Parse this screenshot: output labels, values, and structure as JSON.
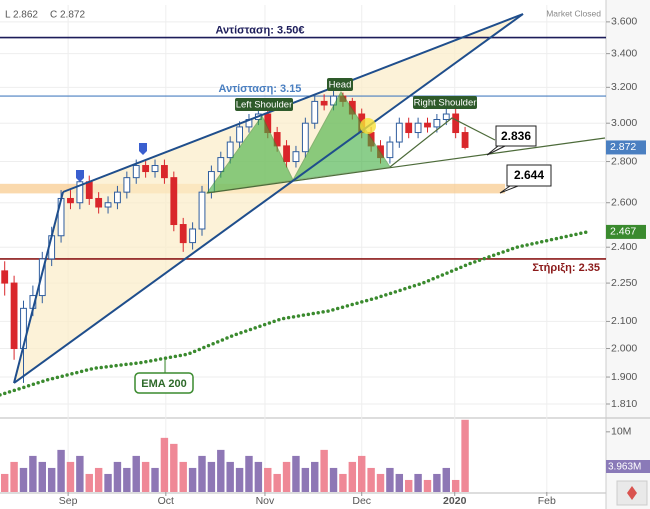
{
  "chart_data": {
    "type": "candlestick",
    "header": {
      "low": "L 2.862",
      "close": "C 2.872",
      "status": "Market Closed"
    },
    "log_scale": true,
    "xlim": [
      0,
      129
    ],
    "xticks": [
      {
        "value": 14.5,
        "label": "Sep"
      },
      {
        "value": 35.3,
        "label": "Oct"
      },
      {
        "value": 56.4,
        "label": "Nov"
      },
      {
        "value": 77,
        "label": "Dec"
      },
      {
        "value": 96.8,
        "label": "2020"
      },
      {
        "value": 116.4,
        "label": "Feb"
      }
    ],
    "ylim": [
      1.765,
      3.711
    ],
    "yticks": [
      {
        "value": 1.81,
        "label": "1.810"
      },
      {
        "value": 1.9,
        "label": "1.900"
      },
      {
        "value": 2.0,
        "label": "2.000"
      },
      {
        "value": 2.1,
        "label": "2.100"
      },
      {
        "value": 2.25,
        "label": "2.250"
      },
      {
        "value": 2.4,
        "label": "2.400"
      },
      {
        "value": 2.6,
        "label": "2.600"
      },
      {
        "value": 2.8,
        "label": "2.800"
      },
      {
        "value": 3.0,
        "label": "3.000"
      },
      {
        "value": 3.2,
        "label": "3.200"
      },
      {
        "value": 3.4,
        "label": "3.400"
      },
      {
        "value": 3.6,
        "label": "3.600"
      }
    ],
    "up_color": "#2f5d9e",
    "down_color": "#d9262b",
    "x": [
      1,
      3,
      5,
      7,
      9,
      11,
      13,
      15,
      17,
      19,
      21,
      23,
      25,
      27,
      29,
      31,
      33,
      35,
      37,
      39,
      41,
      43,
      45,
      47,
      49,
      51,
      53,
      55,
      57,
      59,
      61,
      63,
      65,
      67,
      69,
      71,
      73,
      75,
      77,
      79,
      81,
      83,
      85,
      87,
      89,
      91,
      93,
      95,
      97,
      99
    ],
    "open": [
      2.3,
      2.25,
      2.0,
      2.15,
      2.2,
      2.35,
      2.45,
      2.62,
      2.6,
      2.7,
      2.62,
      2.58,
      2.6,
      2.65,
      2.72,
      2.78,
      2.75,
      2.78,
      2.72,
      2.5,
      2.42,
      2.48,
      2.65,
      2.75,
      2.82,
      2.9,
      2.98,
      3.02,
      3.05,
      2.95,
      2.88,
      2.8,
      2.85,
      3.0,
      3.12,
      3.1,
      3.15,
      3.12,
      3.05,
      2.95,
      2.88,
      2.82,
      2.9,
      3.0,
      2.95,
      3.0,
      2.98,
      3.02,
      3.05,
      2.95
    ],
    "high": [
      2.34,
      2.28,
      2.18,
      2.24,
      2.38,
      2.49,
      2.66,
      2.66,
      2.74,
      2.73,
      2.65,
      2.63,
      2.68,
      2.75,
      2.81,
      2.81,
      2.81,
      2.81,
      2.75,
      2.53,
      2.51,
      2.68,
      2.78,
      2.85,
      2.93,
      3.01,
      3.05,
      3.08,
      3.08,
      2.98,
      2.91,
      2.88,
      3.03,
      3.15,
      3.16,
      3.18,
      3.17,
      3.14,
      3.08,
      2.98,
      2.91,
      2.93,
      3.03,
      3.03,
      3.03,
      3.03,
      3.05,
      3.08,
      3.08,
      2.98
    ],
    "low": [
      2.2,
      1.96,
      1.88,
      2.12,
      2.17,
      2.32,
      2.42,
      2.57,
      2.57,
      2.59,
      2.55,
      2.55,
      2.57,
      2.62,
      2.69,
      2.72,
      2.72,
      2.69,
      2.47,
      2.38,
      2.39,
      2.45,
      2.62,
      2.72,
      2.79,
      2.87,
      2.95,
      2.99,
      2.92,
      2.85,
      2.77,
      2.77,
      2.82,
      2.97,
      3.07,
      3.07,
      3.09,
      3.02,
      2.92,
      2.85,
      2.79,
      2.79,
      2.87,
      2.92,
      2.92,
      2.95,
      2.95,
      2.99,
      2.92,
      2.862
    ],
    "close": [
      2.25,
      2.0,
      2.15,
      2.2,
      2.35,
      2.45,
      2.62,
      2.6,
      2.7,
      2.62,
      2.58,
      2.6,
      2.65,
      2.72,
      2.78,
      2.75,
      2.78,
      2.72,
      2.5,
      2.42,
      2.48,
      2.65,
      2.75,
      2.82,
      2.9,
      2.98,
      3.02,
      3.05,
      2.95,
      2.88,
      2.8,
      2.85,
      3.0,
      3.12,
      3.1,
      3.15,
      3.12,
      3.05,
      2.95,
      2.88,
      2.82,
      2.9,
      3.0,
      2.95,
      3.0,
      2.98,
      3.02,
      3.05,
      2.95,
      2.872
    ],
    "volume": {
      "values": [
        3,
        5,
        4,
        6,
        5,
        4,
        7,
        5,
        6,
        3,
        4,
        3,
        5,
        4,
        6,
        5,
        4,
        9,
        8,
        5,
        4,
        6,
        5,
        7,
        5,
        4,
        6,
        5,
        4,
        3,
        5,
        6,
        4,
        5,
        7,
        4,
        3,
        5,
        6,
        4,
        3,
        4,
        3,
        2,
        3,
        2,
        3,
        4,
        2,
        12
      ],
      "ylim": [
        0,
        12.3
      ],
      "yticks": [
        {
          "value": 10,
          "label": "10M"
        }
      ],
      "ma_label": "3.963M",
      "up_color": "#7a5fa8",
      "down_color": "#ec7384"
    },
    "ema": {
      "name": "EMA 200",
      "color": "#3a8a2e",
      "x": [
        0,
        10,
        20,
        30,
        40,
        50,
        60,
        70,
        80,
        90,
        100,
        110,
        125
      ],
      "values": [
        1.84,
        1.89,
        1.93,
        1.95,
        1.98,
        2.05,
        2.11,
        2.14,
        2.19,
        2.25,
        2.33,
        2.4,
        2.467
      ]
    },
    "levels": [
      {
        "value": 3.5,
        "label": "Αντίσταση: 3.50€",
        "color": "#1c1c5a"
      },
      {
        "value": 3.15,
        "label": "Αντίσταση: 3.15",
        "color": "#4a7fc1"
      },
      {
        "value": 2.35,
        "label": "Στήριξη: 2.35",
        "color": "#8b1a1a"
      }
    ],
    "zone": [
      2.644,
      2.69
    ],
    "pattern_labels": [
      "Left Shoulder",
      "Head",
      "Right Shoulder"
    ],
    "callouts": [
      "2.836",
      "2.644"
    ]
  }
}
